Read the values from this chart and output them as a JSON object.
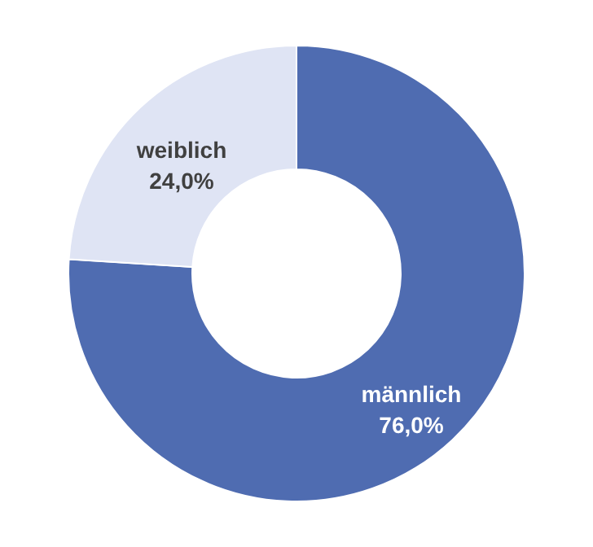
{
  "chart_data": {
    "type": "donut",
    "categories": [
      "männlich",
      "weiblich"
    ],
    "values": [
      76.0,
      24.0
    ],
    "value_labels": [
      "76,0%",
      "24,0%"
    ],
    "colors": [
      "#4f6cb1",
      "#dfe4f4"
    ],
    "legend": false
  }
}
